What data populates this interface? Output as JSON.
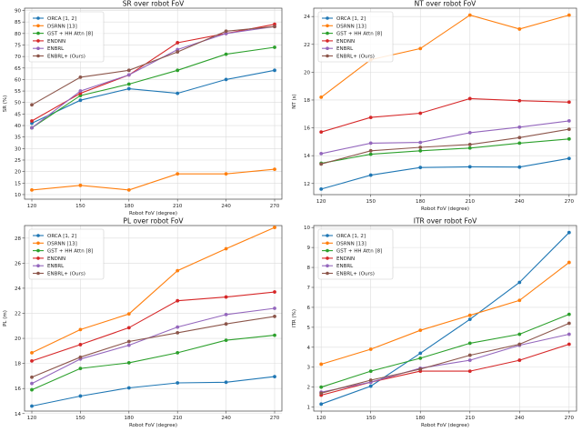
{
  "chart_data": [
    {
      "type": "line",
      "title": "SR over robot FoV",
      "xlabel": "Robot FoV (degree)",
      "ylabel": "SR (%)",
      "x": [
        120,
        150,
        180,
        210,
        240,
        270
      ],
      "xticks": [
        "120",
        "150",
        "180",
        "210",
        "240",
        "270"
      ],
      "ylim": [
        8,
        91
      ],
      "yticks": [
        "10",
        "15",
        "20",
        "25",
        "30",
        "35",
        "40",
        "45",
        "50",
        "55",
        "60",
        "65",
        "70",
        "75",
        "80",
        "85",
        "90"
      ],
      "ytick_values": [
        10,
        15,
        20,
        25,
        30,
        35,
        40,
        45,
        50,
        55,
        60,
        65,
        70,
        75,
        80,
        85,
        90
      ],
      "legend": "upper left",
      "series": [
        {
          "name": "ORCA [1, 2]",
          "color": "#1f77b4",
          "values": [
            41,
            51,
            56,
            54,
            60,
            64
          ]
        },
        {
          "name": "DSRNN [13]",
          "color": "#ff7f0e",
          "values": [
            12,
            14,
            12,
            19,
            19,
            21
          ]
        },
        {
          "name": "GST + HH Attn [8]",
          "color": "#2ca02c",
          "values": [
            39,
            53,
            58,
            64,
            71,
            74
          ]
        },
        {
          "name": "ENDNN",
          "color": "#d62728",
          "values": [
            42,
            54,
            62,
            76,
            80,
            84
          ]
        },
        {
          "name": "ENBRL",
          "color": "#9467bd",
          "values": [
            39,
            55,
            62,
            73,
            80,
            83
          ]
        },
        {
          "name": "ENBRL+ (Ours)",
          "color": "#8c564b",
          "values": [
            49,
            61,
            64,
            72,
            81,
            83
          ]
        }
      ]
    },
    {
      "type": "line",
      "title": "NT over robot FoV",
      "xlabel": "Robot FoV (degree)",
      "ylabel": "NT (s)",
      "x": [
        120,
        150,
        180,
        210,
        240,
        270
      ],
      "xticks": [
        "120",
        "150",
        "180",
        "210",
        "240",
        "270"
      ],
      "ylim": [
        11.2,
        24.6
      ],
      "yticks": [
        "12",
        "14",
        "16",
        "18",
        "20",
        "22",
        "24"
      ],
      "ytick_values": [
        12,
        14,
        16,
        18,
        20,
        22,
        24
      ],
      "legend": "upper left",
      "series": [
        {
          "name": "ORCA [1, 2]",
          "color": "#1f77b4",
          "values": [
            11.6,
            12.6,
            13.15,
            13.2,
            13.18,
            13.8
          ]
        },
        {
          "name": "DSRNN [13]",
          "color": "#ff7f0e",
          "values": [
            18.2,
            20.9,
            21.7,
            24.1,
            23.1,
            24.1
          ]
        },
        {
          "name": "GST + HH Attn [8]",
          "color": "#2ca02c",
          "values": [
            13.45,
            14.1,
            14.35,
            14.55,
            14.9,
            15.2
          ]
        },
        {
          "name": "ENDNN",
          "color": "#d62728",
          "values": [
            15.7,
            16.75,
            17.05,
            18.1,
            17.95,
            17.85
          ]
        },
        {
          "name": "ENBRL",
          "color": "#9467bd",
          "values": [
            14.15,
            14.9,
            14.95,
            15.65,
            16.05,
            16.5
          ]
        },
        {
          "name": "ENBRL+ (Ours)",
          "color": "#8c564b",
          "values": [
            13.4,
            14.35,
            14.6,
            14.8,
            15.3,
            15.9
          ]
        }
      ]
    },
    {
      "type": "line",
      "title": "PL over robot FoV",
      "xlabel": "Robot FoV (degree)",
      "ylabel": "PL (m)",
      "x": [
        120,
        150,
        180,
        210,
        240,
        270
      ],
      "xticks": [
        "120",
        "150",
        "180",
        "210",
        "240",
        "270"
      ],
      "ylim": [
        14.2,
        29.0
      ],
      "yticks": [
        "14",
        "16",
        "18",
        "20",
        "22",
        "24",
        "26",
        "28"
      ],
      "ytick_values": [
        14,
        16,
        18,
        20,
        22,
        24,
        26,
        28
      ],
      "legend": "upper left",
      "series": [
        {
          "name": "ORCA [1, 2]",
          "color": "#1f77b4",
          "values": [
            14.6,
            15.4,
            16.05,
            16.45,
            16.5,
            16.95
          ]
        },
        {
          "name": "DSRNN [13]",
          "color": "#ff7f0e",
          "values": [
            18.85,
            20.7,
            21.95,
            25.4,
            27.15,
            28.85
          ]
        },
        {
          "name": "GST + HH Attn [8]",
          "color": "#2ca02c",
          "values": [
            15.9,
            17.6,
            18.05,
            18.85,
            19.85,
            20.25
          ]
        },
        {
          "name": "ENDNN",
          "color": "#d62728",
          "values": [
            18.2,
            19.5,
            20.85,
            23.0,
            23.3,
            23.7
          ]
        },
        {
          "name": "ENBRL",
          "color": "#9467bd",
          "values": [
            16.4,
            18.35,
            19.45,
            20.9,
            21.9,
            22.4
          ]
        },
        {
          "name": "ENBRL+ (Ours)",
          "color": "#8c564b",
          "values": [
            16.9,
            18.5,
            19.75,
            20.45,
            21.15,
            21.75
          ]
        }
      ]
    },
    {
      "type": "line",
      "title": "ITR over robot FoV",
      "xlabel": "Robot FoV (degree)",
      "ylabel": "ITR (%)",
      "x": [
        120,
        150,
        180,
        210,
        240,
        270
      ],
      "xticks": [
        "120",
        "150",
        "180",
        "210",
        "240",
        "270"
      ],
      "ylim": [
        0.8,
        10.1
      ],
      "yticks": [
        "1",
        "2",
        "3",
        "4",
        "5",
        "6",
        "7",
        "8",
        "9",
        "10"
      ],
      "ytick_values": [
        1,
        2,
        3,
        4,
        5,
        6,
        7,
        8,
        9,
        10
      ],
      "legend": "upper left",
      "series": [
        {
          "name": "ORCA [1, 2]",
          "color": "#1f77b4",
          "values": [
            1.15,
            2.05,
            3.7,
            5.4,
            7.25,
            9.75
          ]
        },
        {
          "name": "DSRNN [13]",
          "color": "#ff7f0e",
          "values": [
            3.15,
            3.9,
            4.85,
            5.6,
            6.35,
            8.25
          ]
        },
        {
          "name": "GST + HH Attn [8]",
          "color": "#2ca02c",
          "values": [
            2.0,
            2.8,
            3.45,
            4.2,
            4.65,
            5.65
          ]
        },
        {
          "name": "ENDNN",
          "color": "#d62728",
          "values": [
            1.6,
            2.25,
            2.8,
            2.8,
            3.35,
            4.15
          ]
        },
        {
          "name": "ENBRL",
          "color": "#9467bd",
          "values": [
            1.75,
            2.25,
            2.95,
            3.35,
            4.1,
            4.65
          ]
        },
        {
          "name": "ENBRL+ (Ours)",
          "color": "#8c564b",
          "values": [
            1.7,
            2.35,
            2.9,
            3.6,
            4.15,
            5.2
          ]
        }
      ]
    }
  ]
}
